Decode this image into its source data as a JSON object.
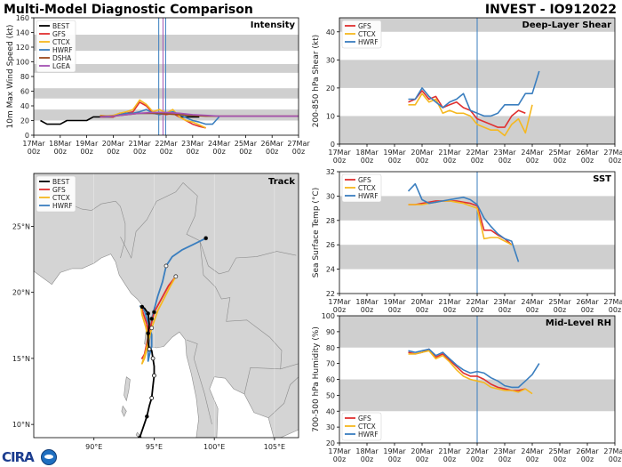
{
  "header": {
    "title_left": "Multi-Model Diagnostic Comparison",
    "title_right": "INVEST - IO912022"
  },
  "logo": {
    "text": "CIRA"
  },
  "colors": {
    "BEST": "#000000",
    "GFS": "#e03030",
    "CTCX": "#f5b820",
    "HWRF": "#3a7ebf",
    "DSHA": "#9c4a1e",
    "LGEA": "#a452b3",
    "band": "#cfcfcf",
    "land": "#d4d4d4",
    "sea": "#ffffff"
  },
  "time_axis": {
    "ticks": [
      {
        "top": "17Mar",
        "bottom": "00z"
      },
      {
        "top": "18Mar",
        "bottom": "00z"
      },
      {
        "top": "19Mar",
        "bottom": "00z"
      },
      {
        "top": "20Mar",
        "bottom": "00z"
      },
      {
        "top": "21Mar",
        "bottom": "00z"
      },
      {
        "top": "22Mar",
        "bottom": "00z"
      },
      {
        "top": "23Mar",
        "bottom": "00z"
      },
      {
        "top": "24Mar",
        "bottom": "00z"
      },
      {
        "top": "25Mar",
        "bottom": "00z"
      },
      {
        "top": "26Mar",
        "bottom": "00z"
      },
      {
        "top": "27Mar",
        "bottom": "00z"
      }
    ]
  },
  "chart_data": [
    {
      "id": "intensity",
      "type": "line",
      "title": "Intensity",
      "ylabel": "10m Max Wind Speed (kt)",
      "xlabel": "",
      "xlim": [
        0,
        10
      ],
      "ylim": [
        0,
        160
      ],
      "yticks": [
        0,
        20,
        40,
        60,
        80,
        100,
        120,
        140,
        160
      ],
      "bands": [
        [
          20,
          35
        ],
        [
          50,
          64
        ],
        [
          85,
          97
        ],
        [
          115,
          137
        ]
      ],
      "vlines": [
        {
          "x": 4.72,
          "color": "#3a7ebf"
        },
        {
          "x": 4.88,
          "color": "#a452b3"
        },
        {
          "x": 4.98,
          "color": "#3a7ebf"
        }
      ],
      "legend": "top-left",
      "series": [
        {
          "name": "BEST",
          "color": "#000000",
          "x": [
            0.25,
            0.5,
            0.75,
            1.0,
            1.25,
            1.5,
            1.75,
            2.0,
            2.25,
            2.5,
            2.75,
            3.0,
            3.25,
            3.5,
            3.75,
            4.0,
            4.25,
            4.5,
            4.75,
            5.0,
            5.25,
            5.5,
            5.75,
            6.0,
            6.25
          ],
          "y": [
            20,
            15,
            15,
            15,
            20,
            20,
            20,
            20,
            25,
            25,
            25,
            25,
            30,
            30,
            30,
            30,
            30,
            30,
            30,
            30,
            30,
            25,
            25,
            25,
            25
          ]
        },
        {
          "name": "GFS",
          "color": "#e03030",
          "x": [
            2.5,
            2.75,
            3.0,
            3.25,
            3.5,
            3.75,
            4.0,
            4.25,
            4.5,
            4.75,
            5.0,
            5.25,
            5.5,
            5.75,
            6.0,
            6.25,
            6.5
          ],
          "y": [
            25,
            25,
            25,
            28,
            30,
            32,
            45,
            40,
            30,
            30,
            28,
            30,
            25,
            20,
            15,
            12,
            10
          ]
        },
        {
          "name": "CTCX",
          "color": "#f5b820",
          "x": [
            2.5,
            2.75,
            3.0,
            3.25,
            3.5,
            3.75,
            4.0,
            4.25,
            4.5,
            4.75,
            5.0,
            5.25,
            5.5,
            5.75,
            6.0,
            6.25,
            6.5
          ],
          "y": [
            27,
            26,
            27,
            30,
            32,
            35,
            48,
            42,
            32,
            35,
            30,
            35,
            25,
            20,
            18,
            14,
            10
          ]
        },
        {
          "name": "HWRF",
          "color": "#3a7ebf",
          "x": [
            2.5,
            2.75,
            3.0,
            3.25,
            3.5,
            3.75,
            4.0,
            4.25,
            4.5,
            4.75,
            5.0,
            5.25,
            5.5,
            5.75,
            6.0,
            6.25,
            6.5,
            6.75,
            7.0
          ],
          "y": [
            26,
            25,
            26,
            28,
            30,
            30,
            32,
            35,
            30,
            28,
            30,
            32,
            28,
            24,
            20,
            18,
            15,
            15,
            25
          ]
        },
        {
          "name": "DSHA",
          "color": "#9c4a1e",
          "x": [
            2.5,
            3.0,
            3.5,
            4.0,
            4.5,
            5.0,
            5.5,
            6.0,
            6.5,
            7.0,
            7.5,
            8.0,
            8.5,
            9.0,
            9.5,
            10.0
          ],
          "y": [
            26,
            26,
            28,
            30,
            30,
            29,
            28,
            27,
            26,
            26,
            26,
            26,
            26,
            26,
            26,
            26
          ]
        },
        {
          "name": "LGEA",
          "color": "#a452b3",
          "x": [
            2.5,
            3.0,
            3.5,
            4.0,
            4.5,
            5.0,
            5.5,
            6.0,
            6.5,
            7.0,
            7.5,
            8.0,
            8.5,
            9.0,
            9.5,
            10.0
          ],
          "y": [
            25,
            26,
            28,
            30,
            31,
            31,
            30,
            28,
            27,
            26,
            26,
            26,
            26,
            26,
            26,
            26
          ]
        }
      ]
    },
    {
      "id": "shear",
      "type": "line",
      "title": "Deep-Layer Shear",
      "ylabel": "200-850 hPa Shear (kt)",
      "xlabel": "",
      "xlim": [
        0,
        10
      ],
      "ylim": [
        0,
        45
      ],
      "yticks": [
        0,
        10,
        20,
        30,
        40
      ],
      "bands": [
        [
          0,
          10
        ],
        [
          20,
          30
        ],
        [
          40,
          45
        ]
      ],
      "vlines": [
        {
          "x": 5.0,
          "color": "#3a7ebf"
        }
      ],
      "legend": "top-left",
      "series": [
        {
          "name": "GFS",
          "color": "#e03030",
          "x": [
            2.5,
            2.75,
            3.0,
            3.25,
            3.5,
            3.75,
            4.0,
            4.25,
            4.5,
            4.75,
            5.0,
            5.25,
            5.5,
            5.75,
            6.0,
            6.25,
            6.5,
            6.75
          ],
          "y": [
            15,
            16,
            19,
            16,
            17,
            13,
            14,
            15,
            13,
            12,
            9,
            8,
            7,
            6,
            6,
            10,
            12,
            11
          ]
        },
        {
          "name": "CTCX",
          "color": "#f5b820",
          "x": [
            2.5,
            2.75,
            3.0,
            3.25,
            3.5,
            3.75,
            4.0,
            4.25,
            4.5,
            4.75,
            5.0,
            5.25,
            5.5,
            5.75,
            6.0,
            6.25,
            6.5,
            6.75,
            7.0
          ],
          "y": [
            14,
            14,
            18,
            15,
            16,
            11,
            12,
            11,
            11,
            10,
            7,
            6,
            5,
            5,
            3,
            7,
            9,
            4,
            14
          ]
        },
        {
          "name": "HWRF",
          "color": "#3a7ebf",
          "x": [
            2.5,
            2.75,
            3.0,
            3.25,
            3.5,
            3.75,
            4.0,
            4.25,
            4.5,
            4.75,
            5.0,
            5.25,
            5.5,
            5.75,
            6.0,
            6.25,
            6.5,
            6.75,
            7.0,
            7.25
          ],
          "y": [
            16,
            16,
            20,
            17,
            15,
            13,
            15,
            16,
            18,
            12,
            11,
            10,
            10,
            11,
            14,
            14,
            14,
            18,
            18,
            26
          ]
        }
      ]
    },
    {
      "id": "sst",
      "type": "line",
      "title": "SST",
      "ylabel": "Sea Surface Temp (°C)",
      "xlabel": "",
      "xlim": [
        0,
        10
      ],
      "ylim": [
        22,
        32
      ],
      "yticks": [
        22,
        24,
        26,
        28,
        30,
        32
      ],
      "bands": [
        [
          24,
          26
        ],
        [
          28,
          30
        ]
      ],
      "vlines": [
        {
          "x": 5.0,
          "color": "#3a7ebf"
        }
      ],
      "legend": "top-left",
      "series": [
        {
          "name": "GFS",
          "color": "#e03030",
          "x": [
            2.5,
            2.75,
            3.0,
            3.25,
            3.5,
            3.75,
            4.0,
            4.25,
            4.5,
            4.75,
            5.0,
            5.25,
            5.5,
            5.75,
            6.0,
            6.25
          ],
          "y": [
            29.3,
            29.3,
            29.4,
            29.5,
            29.6,
            29.6,
            29.6,
            29.6,
            29.5,
            29.4,
            29.2,
            27.2,
            27.2,
            26.8,
            26.5,
            26.0
          ]
        },
        {
          "name": "CTCX",
          "color": "#f5b820",
          "x": [
            2.5,
            2.75,
            3.0,
            3.25,
            3.5,
            3.75,
            4.0,
            4.25,
            4.5,
            4.75,
            5.0,
            5.25,
            5.5,
            5.75,
            6.0,
            6.25
          ],
          "y": [
            29.3,
            29.3,
            29.3,
            29.4,
            29.5,
            29.6,
            29.6,
            29.5,
            29.4,
            29.2,
            29.0,
            26.5,
            26.6,
            26.6,
            26.3,
            26.0
          ]
        },
        {
          "name": "HWRF",
          "color": "#3a7ebf",
          "x": [
            2.5,
            2.75,
            3.0,
            3.25,
            3.5,
            3.75,
            4.0,
            4.25,
            4.5,
            4.75,
            5.0,
            5.25,
            5.5,
            5.75,
            6.0,
            6.25,
            6.5
          ],
          "y": [
            30.4,
            31.0,
            29.7,
            29.4,
            29.5,
            29.6,
            29.7,
            29.8,
            29.9,
            29.7,
            29.3,
            28.2,
            27.5,
            26.9,
            26.5,
            26.3,
            24.6
          ]
        }
      ]
    },
    {
      "id": "rh",
      "type": "line",
      "title": "Mid-Level RH",
      "ylabel": "700-500 hPa Humidity (%)",
      "xlabel": "",
      "xlim": [
        0,
        10
      ],
      "ylim": [
        20,
        100
      ],
      "yticks": [
        20,
        30,
        40,
        50,
        60,
        70,
        80,
        90,
        100
      ],
      "bands": [
        [
          40,
          60
        ],
        [
          80,
          100
        ]
      ],
      "vlines": [
        {
          "x": 5.0,
          "color": "#3a7ebf"
        }
      ],
      "legend": "bottom-left",
      "series": [
        {
          "name": "GFS",
          "color": "#e03030",
          "x": [
            2.5,
            2.75,
            3.0,
            3.25,
            3.5,
            3.75,
            4.0,
            4.25,
            4.5,
            4.75,
            5.0,
            5.25,
            5.5,
            5.75,
            6.0,
            6.25,
            6.5,
            6.75
          ],
          "y": [
            77,
            76,
            77,
            79,
            74,
            76,
            72,
            68,
            64,
            62,
            62,
            60,
            57,
            55,
            54,
            53,
            53,
            54
          ]
        },
        {
          "name": "CTCX",
          "color": "#f5b820",
          "x": [
            2.5,
            2.75,
            3.0,
            3.25,
            3.5,
            3.75,
            4.0,
            4.25,
            4.5,
            4.75,
            5.0,
            5.25,
            5.5,
            5.75,
            6.0,
            6.25,
            6.5,
            6.75,
            7.0
          ],
          "y": [
            76,
            76,
            77,
            78,
            73,
            75,
            71,
            66,
            62,
            60,
            59,
            58,
            55,
            54,
            53,
            53,
            52,
            54,
            51
          ]
        },
        {
          "name": "HWRF",
          "color": "#3a7ebf",
          "x": [
            2.5,
            2.75,
            3.0,
            3.25,
            3.5,
            3.75,
            4.0,
            4.25,
            4.5,
            4.75,
            5.0,
            5.25,
            5.5,
            5.75,
            6.0,
            6.25,
            6.5,
            6.75,
            7.0,
            7.25
          ],
          "y": [
            78,
            77,
            78,
            79,
            75,
            77,
            73,
            69,
            66,
            64,
            65,
            64,
            61,
            59,
            56,
            55,
            55,
            59,
            63,
            70
          ]
        }
      ]
    },
    {
      "id": "track",
      "type": "scatter",
      "title": "Track",
      "xlim": [
        85,
        107
      ],
      "ylim": [
        9,
        29
      ],
      "xticks": [
        {
          "v": 90,
          "label": "90°E"
        },
        {
          "v": 95,
          "label": "95°E"
        },
        {
          "v": 100,
          "label": "100°E"
        },
        {
          "v": 105,
          "label": "105°E"
        }
      ],
      "yticks": [
        {
          "v": 10,
          "label": "10°N"
        },
        {
          "v": 15,
          "label": "15°N"
        },
        {
          "v": 20,
          "label": "20°N"
        },
        {
          "v": 25,
          "label": "25°N"
        }
      ],
      "legend": "top-left",
      "series": [
        {
          "name": "BEST",
          "color": "#000000",
          "lon": [
            93.8,
            94.1,
            94.4,
            94.6,
            94.8,
            94.9,
            95.0,
            95.0,
            94.9,
            94.8,
            94.6,
            94.5,
            94.5,
            94.6,
            94.5,
            94.2,
            94.0,
            93.9
          ],
          "lat": [
            9.0,
            9.8,
            10.6,
            11.4,
            12.0,
            12.9,
            13.7,
            14.4,
            15.0,
            15.6,
            15.7,
            16.2,
            16.9,
            17.6,
            18.4,
            18.8,
            18.9,
            19.0
          ],
          "open": [
            0,
            0,
            0,
            0,
            1,
            0,
            1,
            0,
            1,
            0,
            1,
            0,
            0,
            0,
            0,
            0,
            0,
            0
          ]
        },
        {
          "name": "GFS",
          "color": "#e03030",
          "lon": [
            93.9,
            94.1,
            94.4,
            94.6,
            94.5,
            94.3,
            94.0,
            94.2,
            94.6,
            95.0,
            95.6,
            96.2,
            96.8
          ],
          "lat": [
            19.0,
            18.4,
            17.6,
            16.8,
            16.0,
            15.4,
            15.0,
            15.3,
            17.0,
            18.5,
            19.5,
            20.5,
            21.2
          ]
        },
        {
          "name": "CTCX",
          "color": "#f5b820",
          "lon": [
            93.9,
            94.0,
            94.3,
            94.5,
            94.4,
            94.2,
            94.0,
            94.3,
            94.8,
            95.3,
            95.8,
            96.3,
            96.8
          ],
          "lat": [
            19.0,
            18.3,
            17.4,
            16.5,
            15.7,
            15.0,
            14.6,
            15.5,
            17.3,
            18.6,
            19.5,
            20.4,
            21.2
          ]
        },
        {
          "name": "HWRF",
          "color": "#3a7ebf",
          "lon": [
            93.8,
            94.2,
            94.5,
            94.8,
            94.8,
            94.6,
            94.5,
            94.5,
            94.8,
            95.3,
            95.7,
            96.0,
            96.5,
            97.3,
            98.2,
            99.3
          ],
          "lat": [
            19.0,
            18.6,
            17.7,
            16.8,
            15.9,
            15.2,
            14.8,
            15.5,
            18.0,
            19.7,
            20.8,
            22.0,
            22.7,
            23.2,
            23.6,
            24.1
          ]
        }
      ]
    }
  ]
}
